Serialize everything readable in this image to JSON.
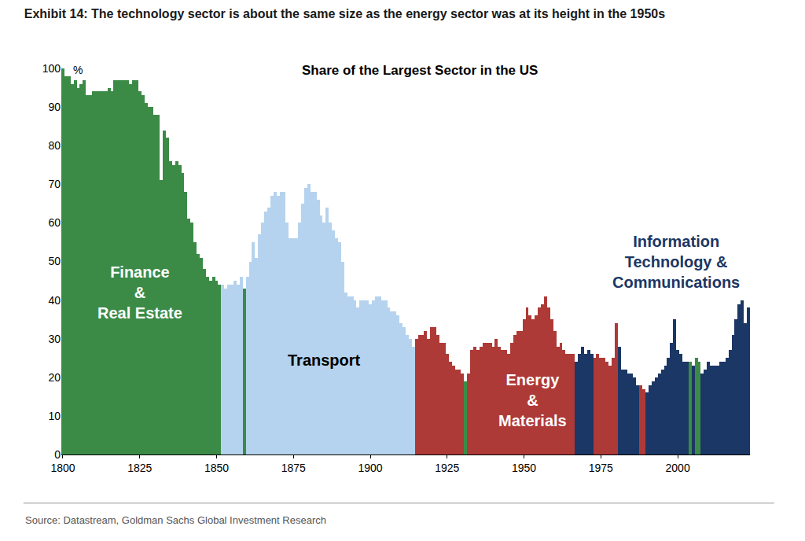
{
  "chart_data": {
    "type": "bar",
    "title": "Exhibit 14: The technology sector is about the same size as the energy sector was at its height in the 1950s",
    "subtitle": "Share of the Largest Sector in the US",
    "y_label": "%",
    "source": "Source: Datastream, Goldman Sachs Global Investment Research",
    "annotations": [
      "Finance\n&\nReal Estate",
      "Transport",
      "Energy\n&\nMaterials",
      "Information\nTechnology &\nCommunications"
    ],
    "x": [
      1800,
      1801,
      1802,
      1803,
      1804,
      1805,
      1806,
      1807,
      1808,
      1809,
      1810,
      1811,
      1812,
      1813,
      1814,
      1815,
      1816,
      1817,
      1818,
      1819,
      1820,
      1821,
      1822,
      1823,
      1824,
      1825,
      1826,
      1827,
      1828,
      1829,
      1830,
      1831,
      1832,
      1833,
      1834,
      1835,
      1836,
      1837,
      1838,
      1839,
      1840,
      1841,
      1842,
      1843,
      1844,
      1845,
      1846,
      1847,
      1848,
      1849,
      1850,
      1851,
      1852,
      1853,
      1854,
      1855,
      1856,
      1857,
      1858,
      1859,
      1860,
      1861,
      1862,
      1863,
      1864,
      1865,
      1866,
      1867,
      1868,
      1869,
      1870,
      1871,
      1872,
      1873,
      1874,
      1875,
      1876,
      1877,
      1878,
      1879,
      1880,
      1881,
      1882,
      1883,
      1884,
      1885,
      1886,
      1887,
      1888,
      1889,
      1890,
      1891,
      1892,
      1893,
      1894,
      1895,
      1896,
      1897,
      1898,
      1899,
      1900,
      1901,
      1902,
      1903,
      1904,
      1905,
      1906,
      1907,
      1908,
      1909,
      1910,
      1911,
      1912,
      1913,
      1914,
      1915,
      1916,
      1917,
      1918,
      1919,
      1920,
      1921,
      1922,
      1923,
      1924,
      1925,
      1926,
      1927,
      1928,
      1929,
      1930,
      1931,
      1932,
      1933,
      1934,
      1935,
      1936,
      1937,
      1938,
      1939,
      1940,
      1941,
      1942,
      1943,
      1944,
      1945,
      1946,
      1947,
      1948,
      1949,
      1950,
      1951,
      1952,
      1953,
      1954,
      1955,
      1956,
      1957,
      1958,
      1959,
      1960,
      1961,
      1962,
      1963,
      1964,
      1965,
      1966,
      1967,
      1968,
      1969,
      1970,
      1971,
      1972,
      1973,
      1974,
      1975,
      1976,
      1977,
      1978,
      1979,
      1980,
      1981,
      1982,
      1983,
      1984,
      1985,
      1986,
      1987,
      1988,
      1989,
      1990,
      1991,
      1992,
      1993,
      1994,
      1995,
      1996,
      1997,
      1998,
      1999,
      2000,
      2001,
      2002,
      2003,
      2004,
      2005,
      2006,
      2007,
      2008,
      2009,
      2010,
      2011,
      2012,
      2013,
      2014,
      2015,
      2016,
      2017,
      2018,
      2019,
      2020,
      2021,
      2022,
      2023
    ],
    "values": [
      100,
      98,
      98,
      96,
      97,
      95,
      96,
      97,
      93,
      93,
      94,
      94,
      94,
      94,
      94,
      95,
      94,
      97,
      97,
      97,
      97,
      97,
      96,
      97,
      97,
      94,
      93,
      91,
      90,
      90,
      88,
      88,
      71,
      84,
      82,
      76,
      75,
      76,
      75,
      73,
      68,
      61,
      60,
      55,
      52,
      51,
      48,
      46,
      45,
      46,
      45,
      44,
      44,
      43,
      44,
      44,
      45,
      44,
      46,
      43,
      46,
      50,
      55,
      51,
      57,
      60,
      63,
      64,
      67,
      68,
      67,
      68,
      68,
      60,
      56,
      56,
      56,
      60,
      65,
      69,
      70,
      68,
      68,
      66,
      62,
      60,
      64,
      60,
      58,
      56,
      55,
      50,
      42,
      41,
      41,
      40,
      38,
      40,
      40,
      40,
      39,
      40,
      41,
      41,
      40,
      40,
      38,
      37,
      37,
      36,
      34,
      33,
      31,
      30,
      28,
      30,
      31,
      31,
      32,
      30,
      33,
      33,
      31,
      29,
      29,
      26,
      24,
      23,
      22,
      22,
      21,
      19,
      21,
      27,
      28,
      27,
      28,
      29,
      29,
      29,
      28,
      30,
      28,
      27,
      27,
      26,
      29,
      31,
      32,
      32,
      35,
      38,
      36,
      35,
      36,
      38,
      39,
      41,
      38,
      35,
      32,
      28,
      29,
      27,
      26,
      26,
      26,
      24,
      26,
      28,
      26,
      27,
      26,
      25,
      26,
      25,
      25,
      24,
      23,
      25,
      34,
      28,
      22,
      22,
      21,
      21,
      20,
      18,
      18,
      17,
      16,
      18,
      19,
      20,
      21,
      22,
      23,
      25,
      29,
      35,
      27,
      26,
      24,
      24,
      24,
      23,
      25,
      24,
      21,
      22,
      24,
      23,
      23,
      23,
      24,
      24,
      25,
      27,
      31,
      35,
      39,
      40,
      34,
      38
    ],
    "colors": [
      "#3b8b47",
      "#3b8b47",
      "#3b8b47",
      "#3b8b47",
      "#3b8b47",
      "#3b8b47",
      "#3b8b47",
      "#3b8b47",
      "#3b8b47",
      "#3b8b47",
      "#3b8b47",
      "#3b8b47",
      "#3b8b47",
      "#3b8b47",
      "#3b8b47",
      "#3b8b47",
      "#3b8b47",
      "#3b8b47",
      "#3b8b47",
      "#3b8b47",
      "#3b8b47",
      "#3b8b47",
      "#3b8b47",
      "#3b8b47",
      "#3b8b47",
      "#3b8b47",
      "#3b8b47",
      "#3b8b47",
      "#3b8b47",
      "#3b8b47",
      "#3b8b47",
      "#3b8b47",
      "#3b8b47",
      "#3b8b47",
      "#3b8b47",
      "#3b8b47",
      "#3b8b47",
      "#3b8b47",
      "#3b8b47",
      "#3b8b47",
      "#3b8b47",
      "#3b8b47",
      "#3b8b47",
      "#3b8b47",
      "#3b8b47",
      "#3b8b47",
      "#3b8b47",
      "#3b8b47",
      "#3b8b47",
      "#3b8b47",
      "#3b8b47",
      "#3b8b47",
      "#b5d3ee",
      "#b5d3ee",
      "#b5d3ee",
      "#b5d3ee",
      "#b5d3ee",
      "#b5d3ee",
      "#b5d3ee",
      "#3b8b47",
      "#b5d3ee",
      "#b5d3ee",
      "#b5d3ee",
      "#b5d3ee",
      "#b5d3ee",
      "#b5d3ee",
      "#b5d3ee",
      "#b5d3ee",
      "#b5d3ee",
      "#b5d3ee",
      "#b5d3ee",
      "#b5d3ee",
      "#b5d3ee",
      "#b5d3ee",
      "#b5d3ee",
      "#b5d3ee",
      "#b5d3ee",
      "#b5d3ee",
      "#b5d3ee",
      "#b5d3ee",
      "#b5d3ee",
      "#b5d3ee",
      "#b5d3ee",
      "#b5d3ee",
      "#b5d3ee",
      "#b5d3ee",
      "#b5d3ee",
      "#b5d3ee",
      "#b5d3ee",
      "#b5d3ee",
      "#b5d3ee",
      "#b5d3ee",
      "#b5d3ee",
      "#b5d3ee",
      "#b5d3ee",
      "#b5d3ee",
      "#b5d3ee",
      "#b5d3ee",
      "#b5d3ee",
      "#b5d3ee",
      "#b5d3ee",
      "#b5d3ee",
      "#b5d3ee",
      "#b5d3ee",
      "#b5d3ee",
      "#b5d3ee",
      "#b5d3ee",
      "#b5d3ee",
      "#b5d3ee",
      "#b5d3ee",
      "#b5d3ee",
      "#b5d3ee",
      "#b5d3ee",
      "#b5d3ee",
      "#b5d3ee",
      "#ae3a37",
      "#ae3a37",
      "#ae3a37",
      "#ae3a37",
      "#ae3a37",
      "#ae3a37",
      "#ae3a37",
      "#ae3a37",
      "#ae3a37",
      "#ae3a37",
      "#ae3a37",
      "#ae3a37",
      "#ae3a37",
      "#ae3a37",
      "#ae3a37",
      "#ae3a37",
      "#3b8b47",
      "#ae3a37",
      "#ae3a37",
      "#ae3a37",
      "#ae3a37",
      "#ae3a37",
      "#ae3a37",
      "#ae3a37",
      "#ae3a37",
      "#ae3a37",
      "#ae3a37",
      "#ae3a37",
      "#ae3a37",
      "#ae3a37",
      "#ae3a37",
      "#ae3a37",
      "#ae3a37",
      "#ae3a37",
      "#ae3a37",
      "#ae3a37",
      "#ae3a37",
      "#ae3a37",
      "#ae3a37",
      "#ae3a37",
      "#ae3a37",
      "#ae3a37",
      "#ae3a37",
      "#ae3a37",
      "#ae3a37",
      "#ae3a37",
      "#ae3a37",
      "#ae3a37",
      "#ae3a37",
      "#ae3a37",
      "#ae3a37",
      "#ae3a37",
      "#1b3765",
      "#1b3765",
      "#1b3765",
      "#1b3765",
      "#1b3765",
      "#1b3765",
      "#ae3a37",
      "#ae3a37",
      "#ae3a37",
      "#ae3a37",
      "#ae3a37",
      "#ae3a37",
      "#ae3a37",
      "#ae3a37",
      "#1b3765",
      "#1b3765",
      "#1b3765",
      "#1b3765",
      "#1b3765",
      "#1b3765",
      "#1b3765",
      "#ae3a37",
      "#ae3a37",
      "#1b3765",
      "#1b3765",
      "#1b3765",
      "#1b3765",
      "#1b3765",
      "#1b3765",
      "#1b3765",
      "#1b3765",
      "#1b3765",
      "#1b3765",
      "#1b3765",
      "#1b3765",
      "#1b3765",
      "#1b3765",
      "#3b8b47",
      "#1b3765",
      "#3b8b47",
      "#3b8b47",
      "#1b3765",
      "#1b3765",
      "#1b3765",
      "#1b3765",
      "#1b3765",
      "#1b3765",
      "#1b3765",
      "#1b3765",
      "#1b3765",
      "#1b3765",
      "#1b3765",
      "#1b3765",
      "#1b3765",
      "#1b3765",
      "#1b3765",
      "#1b3765"
    ],
    "xlim": [
      1799.5,
      2023.5
    ],
    "xticks": [
      1800,
      1825,
      1850,
      1875,
      1900,
      1925,
      1950,
      1975,
      2000
    ],
    "ylim": [
      0,
      100
    ],
    "yticks": [
      0,
      10,
      20,
      30,
      40,
      50,
      60,
      70,
      80,
      90,
      100
    ],
    "grid": false
  }
}
